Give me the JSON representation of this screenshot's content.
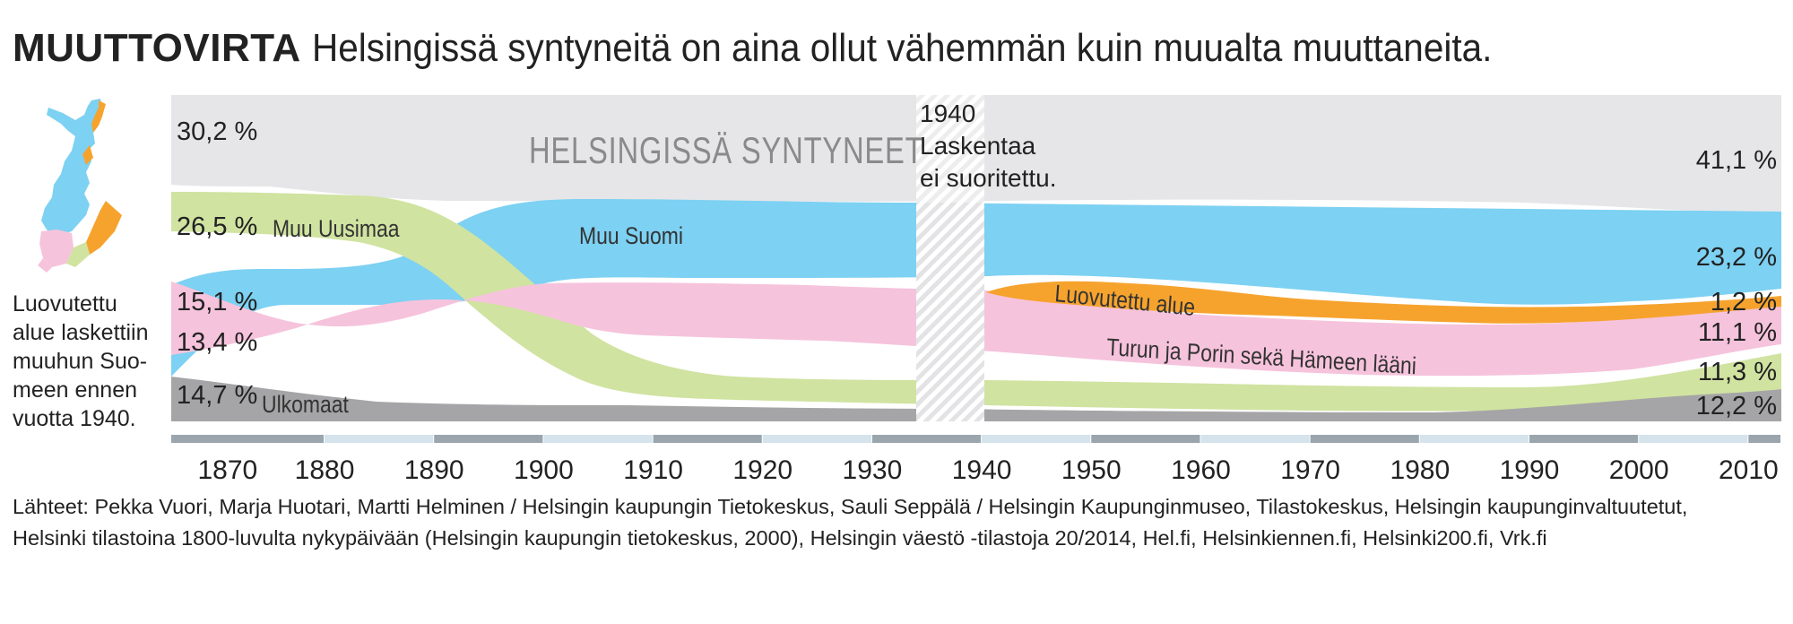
{
  "header": {
    "title_bold": "MUUTTOVIRTA",
    "title_rest": "Helsingissä syntyneitä on aina ollut vähemmän kuin muualta muuttaneita."
  },
  "note": {
    "lines": [
      "Luovutettu",
      "alue laskettiin",
      "muuhun Suo-",
      "meen ennen",
      "vuotta 1940."
    ]
  },
  "gap_note": [
    "1940",
    "Laskentaa",
    "ei suoritettu."
  ],
  "sources": {
    "line1": "Lähteet: Pekka Vuori, Marja Huotari, Martti Helminen / Helsingin kaupungin Tietokeskus, Sauli Seppälä / Helsingin Kaupunginmuseo, Tilastokeskus, Helsingin kaupunginvaltuutetut,",
    "line2": "Helsinki tilastoina 1800-luvulta nykypäivään (Helsingin kaupungin tietokeskus, 2000), Helsingin väestö -tilastoja 20/2014, Hel.fi, Helsinkiennen.fi, Helsinki200.fi, Vrk.fi"
  },
  "colors": {
    "helsinki": "#e6e6e8",
    "muu_suomi": "#7dd1f2",
    "muu_uusimaa": "#d0e3a1",
    "turku_pori_hame": "#f6c3dc",
    "luovutettu": "#f6a32e",
    "ulkomaat": "#a5a5a7"
  },
  "chart_data": {
    "type": "area",
    "title": "Helsingissä syntyneitä on aina ollut vähemmän kuin muualta muuttaneita.",
    "x_ticks": [
      1870,
      1880,
      1890,
      1900,
      1910,
      1920,
      1930,
      1940,
      1950,
      1960,
      1970,
      1980,
      1990,
      2000,
      2010
    ],
    "missing_data": "1940",
    "series": [
      {
        "name": "HELSINGISSÄ SYNTYNEET",
        "key": "helsinki",
        "start_label": "30,2 %",
        "end_label": "41,1 %",
        "start": 30.2,
        "end": 41.1
      },
      {
        "name": "Muu Uusimaa",
        "key": "muu_uusimaa",
        "start_label": "26,5 %",
        "end_label": "11,3 %",
        "start": 26.5,
        "end": 11.3
      },
      {
        "name": "Muu Suomi",
        "key": "muu_suomi",
        "start_label": "13,4 %",
        "end_label": "23,2 %",
        "start": 13.4,
        "end": 23.2
      },
      {
        "name": "Luovutettu alue",
        "key": "luovutettu",
        "start_label": "",
        "end_label": "1,2 %",
        "start": null,
        "end": 1.2
      },
      {
        "name": "Turun ja Porin sekä Hämeen lääni",
        "key": "turku_pori_hame",
        "start_label": "15,1 %",
        "end_label": "11,1 %",
        "start": 15.1,
        "end": 11.1
      },
      {
        "name": "Ulkomaat",
        "key": "ulkomaat",
        "start_label": "14,7 %",
        "end_label": "12,2 %",
        "start": 14.7,
        "end": 12.2
      }
    ]
  }
}
